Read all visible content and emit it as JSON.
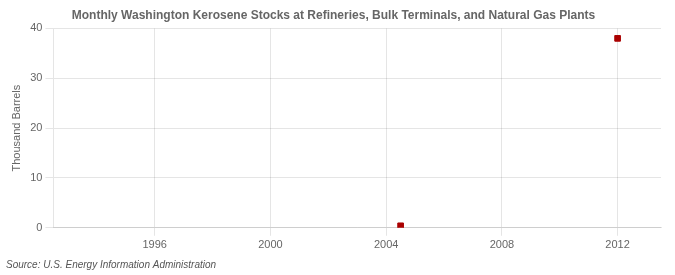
{
  "chart_data": {
    "type": "scatter",
    "title": "Monthly Washington Kerosene Stocks at Refineries, Bulk Terminals, and Natural Gas Plants",
    "ylabel": "Thousand Barrels",
    "annotations": [
      "Source: U.S. Energy Information Administration"
    ],
    "x": [
      2004.5,
      2012.0
    ],
    "values": [
      0.4,
      38.0
    ],
    "color": "#aa0000",
    "marker": "square",
    "xlim": [
      1992.5,
      2013.5
    ],
    "ylim": [
      0,
      40
    ],
    "xticks": [
      1996,
      2000,
      2004,
      2008,
      2012
    ],
    "yticks": [
      0,
      10,
      20,
      30,
      40
    ],
    "grid": true
  }
}
